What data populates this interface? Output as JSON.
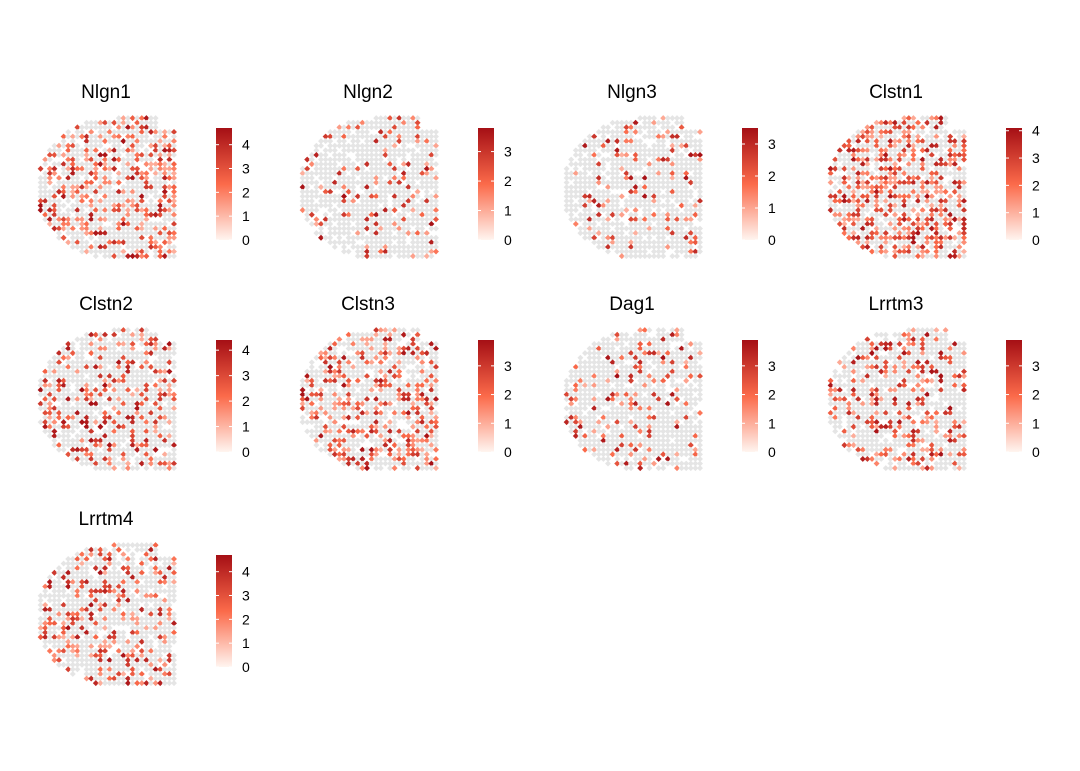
{
  "chart_data": {
    "type": "heatmap",
    "description_type": "spatial feature plot",
    "colormap": {
      "low": "#FFF5F0",
      "mid": "#FB6A4A",
      "high": "#A50F15",
      "background_spot": "#E5E5E5"
    },
    "panels": [
      {
        "title": "Nlgn1",
        "legend_ticks": [
          "0",
          "1",
          "2",
          "3",
          "4"
        ],
        "legend_max": 4.7,
        "density": "high"
      },
      {
        "title": "Nlgn2",
        "legend_ticks": [
          "0",
          "1",
          "2",
          "3"
        ],
        "legend_max": 3.8,
        "density": "low"
      },
      {
        "title": "Nlgn3",
        "legend_ticks": [
          "0",
          "1",
          "2",
          "3"
        ],
        "legend_max": 3.5,
        "density": "low"
      },
      {
        "title": "Clstn1",
        "legend_ticks": [
          "0",
          "1",
          "2",
          "3",
          "4"
        ],
        "legend_max": 4.1,
        "density": "very-high"
      },
      {
        "title": "Clstn2",
        "legend_ticks": [
          "0",
          "1",
          "2",
          "3",
          "4"
        ],
        "legend_max": 4.4,
        "density": "medium"
      },
      {
        "title": "Clstn3",
        "legend_ticks": [
          "0",
          "1",
          "2",
          "3"
        ],
        "legend_max": 3.9,
        "density": "high"
      },
      {
        "title": "Dag1",
        "legend_ticks": [
          "0",
          "1",
          "2",
          "3"
        ],
        "legend_max": 3.9,
        "density": "low"
      },
      {
        "title": "Lrrtm3",
        "legend_ticks": [
          "0",
          "1",
          "2",
          "3"
        ],
        "legend_max": 3.9,
        "density": "medium"
      },
      {
        "title": "Lrrtm4",
        "legend_ticks": [
          "0",
          "1",
          "2",
          "3",
          "4"
        ],
        "legend_max": 4.7,
        "density": "medium"
      }
    ]
  }
}
